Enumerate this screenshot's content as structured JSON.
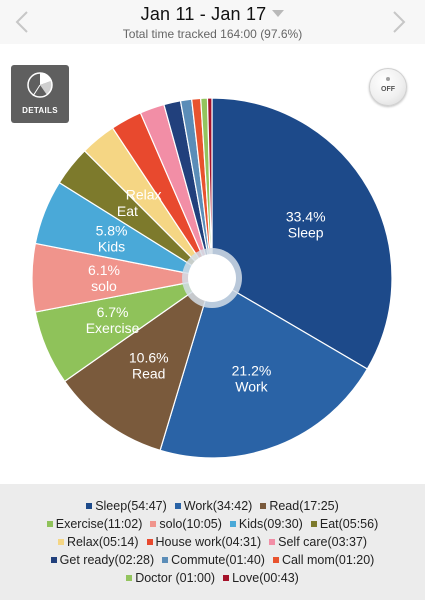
{
  "header": {
    "date_range": "Jan 11 - Jan 17",
    "total_tracked": "Total time tracked 164:00 (97.6%)"
  },
  "controls": {
    "details_label": "DETAILS",
    "toggle_label": "OFF"
  },
  "icons": {
    "prev": "chevron-left-icon",
    "next": "chevron-right-icon",
    "range_menu": "caret-down-icon",
    "details": "pie-chart-icon"
  },
  "chart_data": {
    "type": "pie",
    "slices": [
      {
        "name": "Sleep",
        "duration": "54:47",
        "legend": "Sleep(54:47)",
        "percent": 33.4,
        "pct_label": "33.4%",
        "color": "#1d4a8a",
        "label_color": "#ffffff"
      },
      {
        "name": "Work",
        "duration": "34:42",
        "legend": "Work(34:42)",
        "percent": 21.2,
        "pct_label": "21.2%",
        "color": "#2a63a6",
        "label_color": "#ffffff"
      },
      {
        "name": "Read",
        "duration": "17:25",
        "legend": "Read(17:25)",
        "percent": 10.6,
        "pct_label": "10.6%",
        "color": "#7a5a3c",
        "label_color": "#ffffff"
      },
      {
        "name": "Exercise",
        "duration": "11:02",
        "legend": "Exercise(11:02)",
        "percent": 6.7,
        "pct_label": "6.7%",
        "color": "#8fc25a",
        "label_color": "#ffffff"
      },
      {
        "name": "solo",
        "duration": "10:05",
        "legend": "solo(10:05)",
        "percent": 6.1,
        "pct_label": "6.1%",
        "color": "#f0948c",
        "label_color": "#ffffff"
      },
      {
        "name": "Kids",
        "duration": "09:30",
        "legend": "Kids(09:30)",
        "percent": 5.8,
        "pct_label": "5.8%",
        "color": "#4aa9d8",
        "label_color": "#ffffff"
      },
      {
        "name": "Eat",
        "duration": "05:56",
        "legend": "Eat(05:56)",
        "percent": 3.6,
        "pct_label": "",
        "color": "#7d7a2c",
        "label_color": "#ffffff"
      },
      {
        "name": "Relax",
        "duration": "05:14",
        "legend": "Relax(05:14)",
        "percent": 3.2,
        "pct_label": "",
        "color": "#f5d684",
        "label_color": "#ffffff"
      },
      {
        "name": "House work",
        "duration": "04:31",
        "legend": "House work(04:31)",
        "percent": 2.8,
        "pct_label": "",
        "color": "#e8492e",
        "label_color": "#ffffff"
      },
      {
        "name": "Self care",
        "duration": "03:37",
        "legend": "Self care(03:37)",
        "percent": 2.2,
        "pct_label": "",
        "color": "#f28ea6",
        "label_color": "#ffffff"
      },
      {
        "name": "Get ready",
        "duration": "02:28",
        "legend": "Get ready(02:28)",
        "percent": 1.5,
        "pct_label": "",
        "color": "#21407c",
        "label_color": "#ffffff"
      },
      {
        "name": "Commute",
        "duration": "01:40",
        "legend": "Commute(01:40)",
        "percent": 1.0,
        "pct_label": "",
        "color": "#5b8db8",
        "label_color": "#ffffff"
      },
      {
        "name": "Call mom",
        "duration": "01:20",
        "legend": "Call mom(01:20)",
        "percent": 0.8,
        "pct_label": "",
        "color": "#e8532e",
        "label_color": "#ffffff"
      },
      {
        "name": "Doctor",
        "duration": "01:00",
        "legend": "Doctor (01:00)",
        "percent": 0.6,
        "pct_label": "",
        "color": "#93c45e",
        "label_color": "#ffffff"
      },
      {
        "name": "Love",
        "duration": "00:43",
        "legend": "Love(00:43)",
        "percent": 0.4,
        "pct_label": "",
        "color": "#a5122a",
        "label_color": "#ffffff"
      }
    ],
    "legend_rows": [
      [
        0,
        1,
        2
      ],
      [
        3,
        4,
        5,
        6
      ],
      [
        7,
        8,
        9
      ],
      [
        10,
        11,
        12
      ],
      [
        13,
        14
      ]
    ]
  }
}
